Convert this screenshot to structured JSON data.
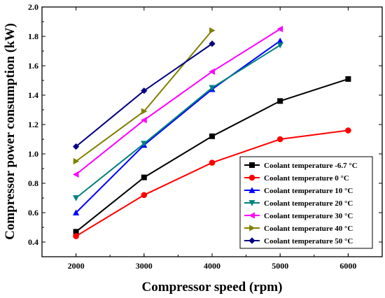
{
  "chart_data": {
    "type": "line",
    "title": "",
    "xlabel": "Compressor speed (rpm)",
    "ylabel": "Compressor power consumption (kW)",
    "xlim": [
      1500,
      6500
    ],
    "ylim": [
      0.3,
      2.0
    ],
    "xticks": [
      2000,
      3000,
      4000,
      5000,
      6000
    ],
    "yticks": [
      0.4,
      0.6,
      0.8,
      1.0,
      1.2,
      1.4,
      1.6,
      1.8,
      2.0
    ],
    "xtick_labels": [
      "2000",
      "3000",
      "4000",
      "5000",
      "6000"
    ],
    "ytick_labels": [
      "0.4",
      "0.6",
      "0.8",
      "1.0",
      "1.2",
      "1.4",
      "1.6",
      "1.8",
      "2.0"
    ],
    "grid": false,
    "legend_position": "bottom-right",
    "series": [
      {
        "name": "Coolant temperature -6.7 °C",
        "color": "#000000",
        "marker": "square",
        "x": [
          2000,
          3000,
          4000,
          5000,
          6000
        ],
        "values": [
          0.47,
          0.84,
          1.12,
          1.36,
          1.51
        ]
      },
      {
        "name": "Coolant temperature 0 °C",
        "color": "#ff0000",
        "marker": "circle",
        "x": [
          2000,
          3000,
          4000,
          5000,
          6000
        ],
        "values": [
          0.44,
          0.72,
          0.94,
          1.1,
          1.16
        ]
      },
      {
        "name": "Coolant temperature 10 °C",
        "color": "#0000ff",
        "marker": "triangle-up",
        "x": [
          2000,
          3000,
          4000,
          5000
        ],
        "values": [
          0.6,
          1.06,
          1.44,
          1.77
        ]
      },
      {
        "name": "Coolant temperature 20 °C",
        "color": "#008080",
        "marker": "triangle-down",
        "x": [
          2000,
          3000,
          4000,
          5000
        ],
        "values": [
          0.7,
          1.07,
          1.45,
          1.74
        ]
      },
      {
        "name": "Coolant temperature 30 °C",
        "color": "#ff00ff",
        "marker": "triangle-left",
        "x": [
          2000,
          3000,
          4000,
          5000
        ],
        "values": [
          0.86,
          1.23,
          1.56,
          1.85
        ]
      },
      {
        "name": "Coolant temperature 40 °C",
        "color": "#808000",
        "marker": "triangle-right",
        "x": [
          2000,
          3000,
          4000
        ],
        "values": [
          0.95,
          1.29,
          1.84
        ]
      },
      {
        "name": "Coolant temperature 50 °C",
        "color": "#000080",
        "marker": "diamond",
        "x": [
          2000,
          3000,
          4000
        ],
        "values": [
          1.05,
          1.43,
          1.75
        ]
      }
    ]
  }
}
